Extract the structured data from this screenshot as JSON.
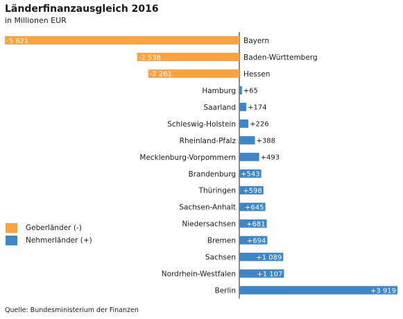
{
  "chart_data": {
    "type": "bar",
    "orientation": "horizontal",
    "title": "Länderfinanzausgleich 2016",
    "subtitle": "in Millionen EUR",
    "source": "Quelle: Bundesministerium der Finanzen",
    "xlim": [
      -5821,
      3919
    ],
    "grid": false,
    "legend_placement": "left",
    "series": [
      {
        "name": "Geberländer (-)",
        "color": "#f9a343"
      },
      {
        "name": "Nehmerländer (+)",
        "color": "#3f86c7"
      }
    ],
    "bars": [
      {
        "category": "Bayern",
        "value": -5821,
        "label": "-5 821"
      },
      {
        "category": "Baden-Württemberg",
        "value": -2538,
        "label": "-2 538"
      },
      {
        "category": "Hessen",
        "value": -2261,
        "label": "-2 261"
      },
      {
        "category": "Hamburg",
        "value": 65,
        "label": "+65"
      },
      {
        "category": "Saarland",
        "value": 174,
        "label": "+174"
      },
      {
        "category": "Schleswig-Holstein",
        "value": 226,
        "label": "+226"
      },
      {
        "category": "Rheinland-Pfalz",
        "value": 388,
        "label": "+388"
      },
      {
        "category": "Mecklenburg-Vorpommern",
        "value": 493,
        "label": "+493"
      },
      {
        "category": "Brandenburg",
        "value": 543,
        "label": "+543"
      },
      {
        "category": "Thüringen",
        "value": 598,
        "label": "+598"
      },
      {
        "category": "Sachsen-Anhalt",
        "value": 645,
        "label": "+645"
      },
      {
        "category": "Niedersachsen",
        "value": 681,
        "label": "+681"
      },
      {
        "category": "Bremen",
        "value": 694,
        "label": "+694"
      },
      {
        "category": "Sachsen",
        "value": 1089,
        "label": "+1 089"
      },
      {
        "category": "Nordrhein-Westfalen",
        "value": 1107,
        "label": "+1 107"
      },
      {
        "category": "Berlin",
        "value": 3919,
        "label": "+3 919"
      }
    ]
  }
}
